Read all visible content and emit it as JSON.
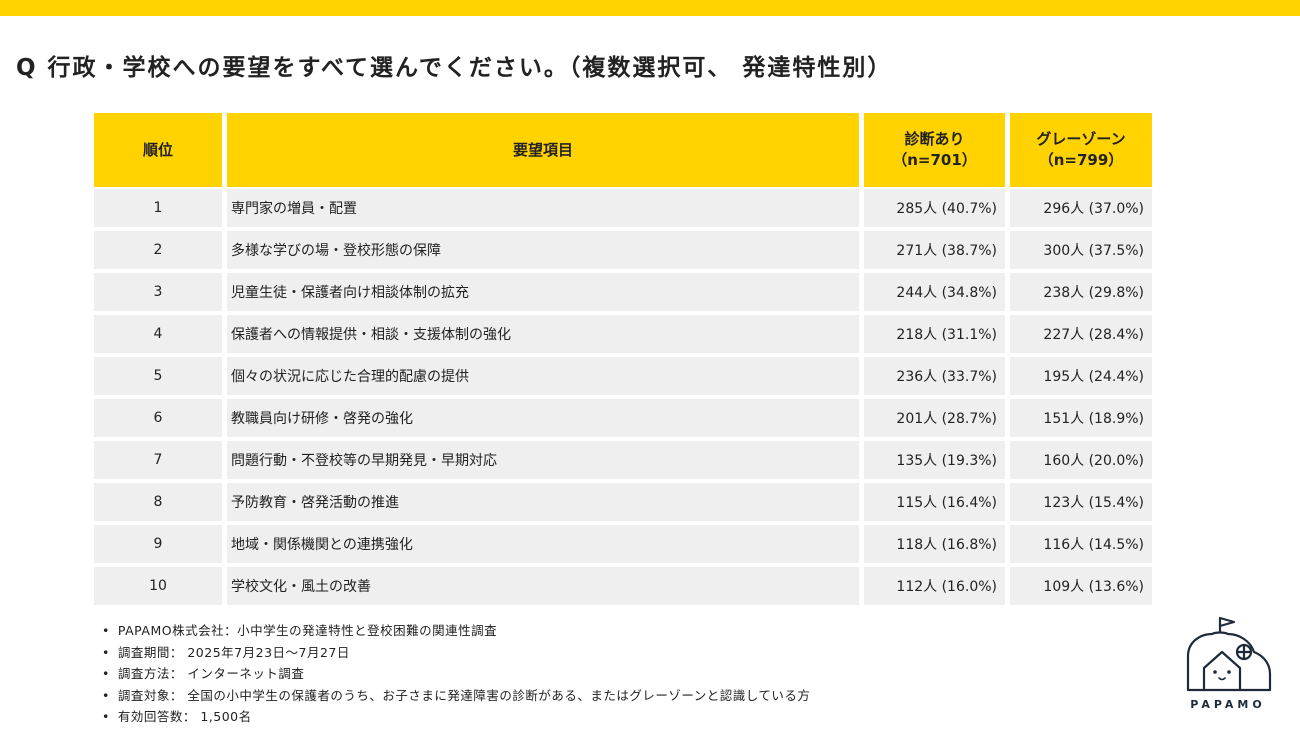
{
  "title": "Q 行政・学校への要望をすべて選んでください。（複数選択可、 発達特性別）",
  "table": {
    "headers": {
      "rank": "順位",
      "item": "要望項目",
      "diag_line1": "診断あり",
      "diag_line2": "（n=701）",
      "gray_line1": "グレーゾーン",
      "gray_line2": "（n=799）"
    },
    "rows": [
      {
        "rank": "1",
        "item": "専門家の増員・配置",
        "diag": "285人 (40.7%)",
        "gray": "296人 (37.0%)"
      },
      {
        "rank": "2",
        "item": "多様な学びの場・登校形態の保障",
        "diag": "271人 (38.7%)",
        "gray": "300人 (37.5%)"
      },
      {
        "rank": "3",
        "item": "児童生徒・保護者向け相談体制の拡充",
        "diag": "244人 (34.8%)",
        "gray": "238人 (29.8%)"
      },
      {
        "rank": "4",
        "item": "保護者への情報提供・相談・支援体制の強化",
        "diag": "218人 (31.1%)",
        "gray": "227人 (28.4%)"
      },
      {
        "rank": "5",
        "item": "個々の状況に応じた合理的配慮の提供",
        "diag": "236人 (33.7%)",
        "gray": "195人 (24.4%)"
      },
      {
        "rank": "6",
        "item": "教職員向け研修・啓発の強化",
        "diag": "201人 (28.7%)",
        "gray": "151人 (18.9%)"
      },
      {
        "rank": "7",
        "item": "問題行動・不登校等の早期発見・早期対応",
        "diag": "135人 (19.3%)",
        "gray": "160人 (20.0%)"
      },
      {
        "rank": "8",
        "item": "予防教育・啓発活動の推進",
        "diag": "115人 (16.4%)",
        "gray": "123人 (15.4%)"
      },
      {
        "rank": "9",
        "item": "地域・関係機関との連携強化",
        "diag": "118人 (16.8%)",
        "gray": "116人 (14.5%)"
      },
      {
        "rank": "10",
        "item": "学校文化・風土の改善",
        "diag": "112人 (16.0%)",
        "gray": "109人 (13.6%)"
      }
    ]
  },
  "notes": [
    "PAPAMO株式会社：小中学生の発達特性と登校困難の関連性調査",
    "調査期間： 2025年7月23日～7月27日",
    "調査方法： インターネット調査",
    "調査対象： 全国の小中学生の保護者のうち、お子さまに発達障害の診断がある、またはグレーゾーンと認識している方",
    "有効回答数： 1,500名"
  ],
  "logo": {
    "text": "PAPAMO",
    "icon": "house-face-logo-icon"
  },
  "colors": {
    "accent": "#FFD200",
    "row_bg": "#EFEFEF",
    "logo": "#1e2a3a"
  }
}
